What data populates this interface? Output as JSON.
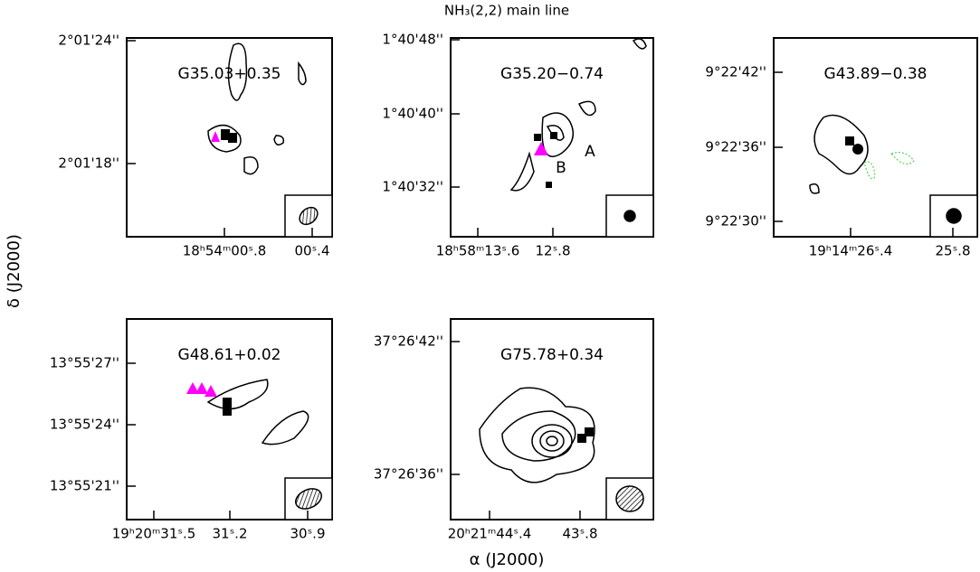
{
  "title": "NH₃(2,2) main line",
  "x_axis_label": "α (J2000)",
  "y_axis_label": "δ (J2000)",
  "panels": [
    {
      "name": "G35.03+0.35",
      "yticks": [
        "2°01'24''",
        "2°01'18''"
      ],
      "xticks": [
        "18ʰ54ᵐ00ˢ.8",
        "00ˢ.4"
      ]
    },
    {
      "name": "G35.20−0.74",
      "yticks": [
        "1°40'48''",
        "1°40'40''",
        "1°40'32''"
      ],
      "xticks": [
        "18ʰ58ᵐ13ˢ.6",
        "12ˢ.8"
      ],
      "annotations": [
        "A",
        "B"
      ]
    },
    {
      "name": "G43.89−0.38",
      "yticks": [
        "9°22'42''",
        "9°22'36''",
        "9°22'30''"
      ],
      "xticks": [
        "19ʰ14ᵐ26ˢ.4",
        "25ˢ.8"
      ]
    },
    {
      "name": "G48.61+0.02",
      "yticks": [
        "13°55'27''",
        "13°55'24''",
        "13°55'21''"
      ],
      "xticks": [
        "19ʰ20ᵐ31ˢ.5",
        "31ˢ.2",
        "30ˢ.9"
      ]
    },
    {
      "name": "G75.78+0.34",
      "yticks": [
        "37°26'42''",
        "37°26'36''"
      ],
      "xticks": [
        "20ʰ21ᵐ44ˢ.4",
        "43ˢ.8"
      ]
    }
  ]
}
